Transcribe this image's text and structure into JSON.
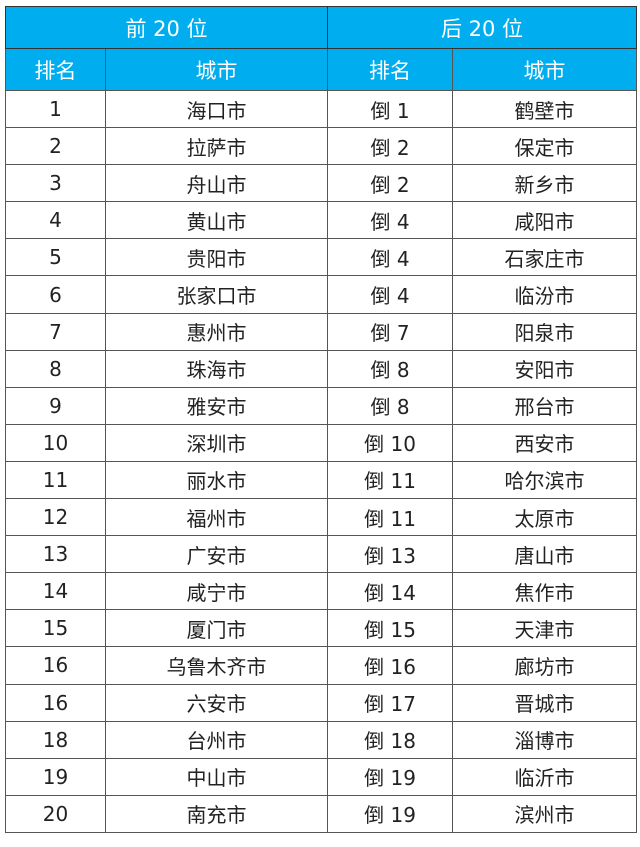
{
  "header": {
    "top20": "前 20 位",
    "bottom20": "后 20 位",
    "rank": "排名",
    "city": "城市"
  },
  "colors": {
    "header_bg": "#00AEEF",
    "header_text": "#FFFFFF"
  },
  "rows": [
    {
      "rank": "1",
      "city": "海口市",
      "rrank": "倒 1",
      "rcity": "鹤壁市"
    },
    {
      "rank": "2",
      "city": "拉萨市",
      "rrank": "倒 2",
      "rcity": "保定市"
    },
    {
      "rank": "3",
      "city": "舟山市",
      "rrank": "倒 2",
      "rcity": "新乡市"
    },
    {
      "rank": "4",
      "city": "黄山市",
      "rrank": "倒 4",
      "rcity": "咸阳市"
    },
    {
      "rank": "5",
      "city": "贵阳市",
      "rrank": "倒 4",
      "rcity": "石家庄市"
    },
    {
      "rank": "6",
      "city": "张家口市",
      "rrank": "倒 4",
      "rcity": "临汾市"
    },
    {
      "rank": "7",
      "city": "惠州市",
      "rrank": "倒 7",
      "rcity": "阳泉市"
    },
    {
      "rank": "8",
      "city": "珠海市",
      "rrank": "倒 8",
      "rcity": "安阳市"
    },
    {
      "rank": "9",
      "city": "雅安市",
      "rrank": "倒 8",
      "rcity": "邢台市"
    },
    {
      "rank": "10",
      "city": "深圳市",
      "rrank": "倒 10",
      "rcity": "西安市"
    },
    {
      "rank": "11",
      "city": "丽水市",
      "rrank": "倒 11",
      "rcity": "哈尔滨市"
    },
    {
      "rank": "12",
      "city": "福州市",
      "rrank": "倒 11",
      "rcity": "太原市"
    },
    {
      "rank": "13",
      "city": "广安市",
      "rrank": "倒 13",
      "rcity": "唐山市"
    },
    {
      "rank": "14",
      "city": "咸宁市",
      "rrank": "倒 14",
      "rcity": "焦作市"
    },
    {
      "rank": "15",
      "city": "厦门市",
      "rrank": "倒 15",
      "rcity": "天津市"
    },
    {
      "rank": "16",
      "city": "乌鲁木齐市",
      "rrank": "倒 16",
      "rcity": "廊坊市"
    },
    {
      "rank": "16",
      "city": "六安市",
      "rrank": "倒 17",
      "rcity": "晋城市"
    },
    {
      "rank": "18",
      "city": "台州市",
      "rrank": "倒 18",
      "rcity": "淄博市"
    },
    {
      "rank": "19",
      "city": "中山市",
      "rrank": "倒 19",
      "rcity": "临沂市"
    },
    {
      "rank": "20",
      "city": "南充市",
      "rrank": "倒 19",
      "rcity": "滨州市"
    }
  ]
}
